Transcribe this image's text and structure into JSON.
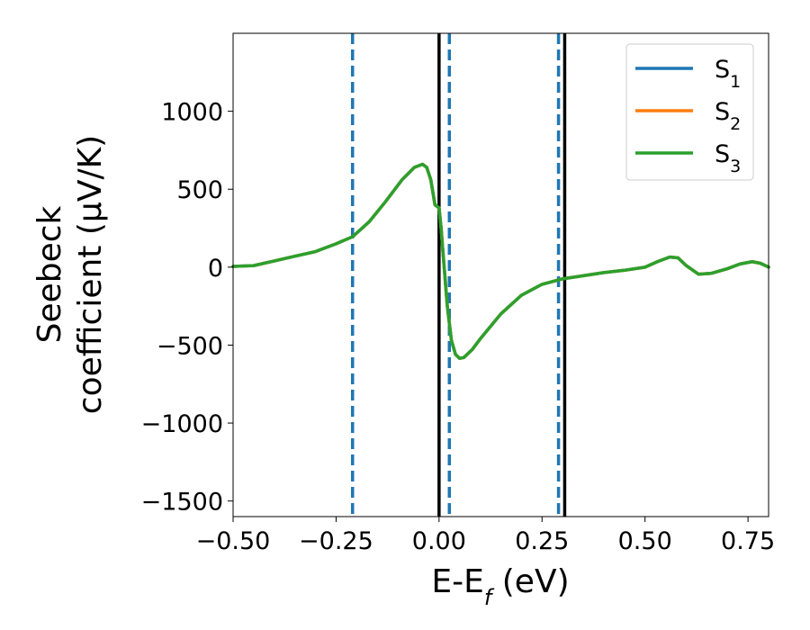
{
  "chart_data": {
    "type": "line",
    "xlabel": {
      "main": "E-E",
      "sub": "f",
      "tail": " (eV)"
    },
    "ylabel": {
      "line1": "Seebeck",
      "line2": "coefficient  (μV/K)"
    },
    "xlim": [
      -0.5,
      0.8
    ],
    "ylim": [
      -1600,
      1500
    ],
    "xticks": [
      -0.5,
      -0.25,
      0.0,
      0.25,
      0.5,
      0.75
    ],
    "xtick_labels": [
      "−0.50",
      "−0.25",
      "0.00",
      "0.25",
      "0.50",
      "0.75"
    ],
    "yticks": [
      -1500,
      -1000,
      -500,
      0,
      500,
      1000
    ],
    "ytick_labels": [
      "−1500",
      "−1000",
      "−500",
      "0",
      "500",
      "1000"
    ],
    "grid": false,
    "legend_position": "top-right",
    "series": [
      {
        "name": "S",
        "sub": "1",
        "color": "#1f77b4"
      },
      {
        "name": "S",
        "sub": "2",
        "color": "#ff7f0e"
      },
      {
        "name": "S",
        "sub": "3",
        "color": "#2ca02c"
      }
    ],
    "curve": {
      "x": [
        -0.5,
        -0.45,
        -0.4,
        -0.35,
        -0.3,
        -0.25,
        -0.21,
        -0.17,
        -0.13,
        -0.09,
        -0.06,
        -0.04,
        -0.03,
        -0.02,
        -0.01,
        0.0,
        0.005,
        0.01,
        0.02,
        0.03,
        0.04,
        0.05,
        0.06,
        0.08,
        0.1,
        0.15,
        0.2,
        0.25,
        0.3,
        0.35,
        0.4,
        0.45,
        0.5,
        0.53,
        0.56,
        0.58,
        0.6,
        0.63,
        0.66,
        0.7,
        0.73,
        0.76,
        0.78,
        0.8
      ],
      "y": [
        5,
        10,
        40,
        70,
        100,
        150,
        195,
        290,
        420,
        560,
        640,
        660,
        640,
        560,
        400,
        380,
        250,
        80,
        -250,
        -470,
        -560,
        -585,
        -580,
        -530,
        -460,
        -300,
        -180,
        -110,
        -75,
        -55,
        -35,
        -20,
        0,
        35,
        65,
        60,
        10,
        -45,
        -40,
        -10,
        20,
        35,
        25,
        0
      ]
    },
    "vlines_solid": {
      "color": "#000000",
      "x": [
        0.0,
        0.305
      ]
    },
    "vlines_dashed": {
      "color": "#1f77b4",
      "x": [
        -0.21,
        0.025,
        0.29
      ]
    }
  }
}
